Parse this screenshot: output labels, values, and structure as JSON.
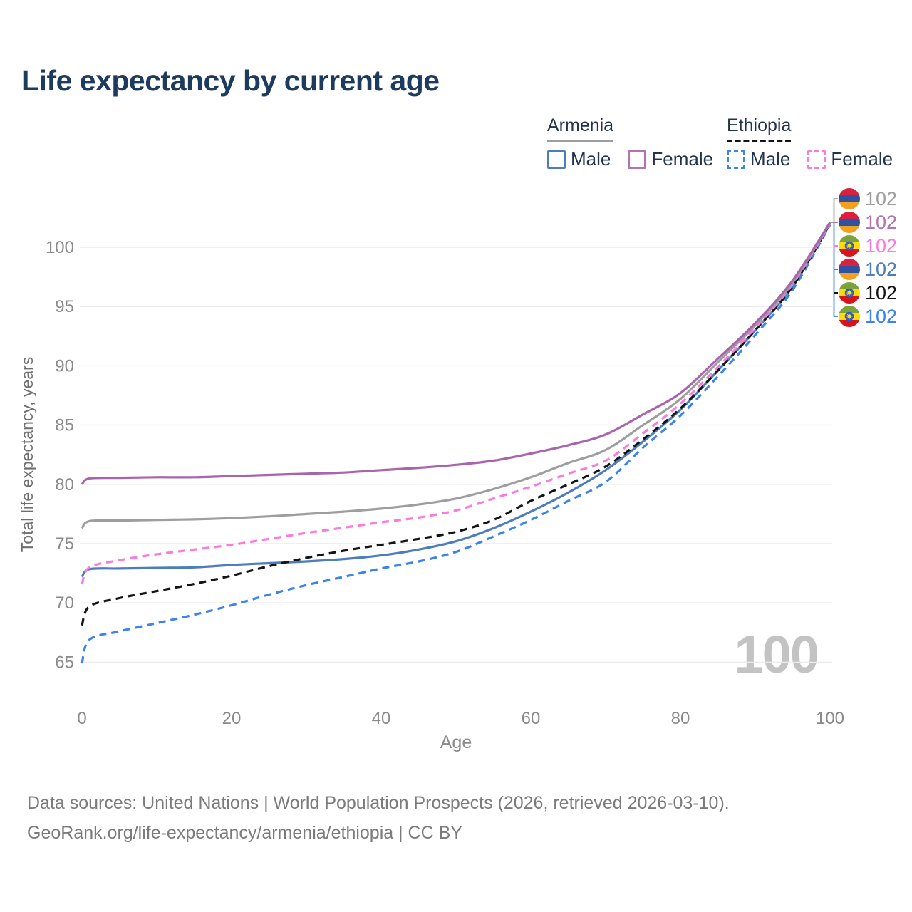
{
  "title": "Life expectancy by current age",
  "watermark": "100",
  "legend": {
    "groups": [
      {
        "label": "Armenia",
        "line_style": "solid",
        "line_color": "#9e9e9e",
        "items": [
          {
            "label": "Male",
            "color": "#4d7dbd",
            "dashed": false
          },
          {
            "label": "Female",
            "color": "#b474b4",
            "dashed": false
          }
        ]
      },
      {
        "label": "Ethiopia",
        "line_style": "dashed",
        "line_color": "#141414",
        "items": [
          {
            "label": "Male",
            "color": "#3c82f0",
            "dashed": true
          },
          {
            "label": "Female",
            "color": "#fb7ade",
            "dashed": true
          }
        ]
      }
    ]
  },
  "footer": {
    "line1": "Data sources: United Nations | World Population Prospects (2026, retrieved 2026-03-10).",
    "line2": "GeoRank.org/life-expectancy/armenia/ethiopia | CC BY"
  },
  "chart_data": {
    "type": "line",
    "title": "Life expectancy by current age",
    "xlabel": "Age",
    "ylabel": "Total life expectancy, years",
    "xlim": [
      0,
      100
    ],
    "ylim": [
      63,
      104
    ],
    "x_ticks": [
      0,
      20,
      40,
      60,
      80,
      100
    ],
    "y_ticks": [
      65,
      70,
      75,
      80,
      85,
      90,
      95,
      100
    ],
    "grid": "horizontal",
    "legend_position": "top-right",
    "ages": [
      0,
      1,
      5,
      10,
      15,
      20,
      25,
      30,
      35,
      40,
      45,
      50,
      55,
      60,
      65,
      70,
      75,
      80,
      85,
      90,
      95,
      100
    ],
    "series": [
      {
        "name": "Armenia Female",
        "country": "Armenia",
        "sex": "Female",
        "style": "solid",
        "color": "#aa64ad",
        "end_label": "102",
        "values": [
          80.0,
          80.5,
          80.55,
          80.6,
          80.6,
          80.7,
          80.8,
          80.9,
          81.0,
          81.2,
          81.4,
          81.65,
          82.0,
          82.6,
          83.3,
          84.2,
          85.9,
          87.7,
          90.6,
          93.6,
          97.2,
          102.1
        ]
      },
      {
        "name": "Armenia All",
        "country": "Armenia",
        "sex": "All",
        "style": "solid",
        "color": "#9e9e9e",
        "end_label": "102",
        "values": [
          76.3,
          76.9,
          76.95,
          77.0,
          77.05,
          77.15,
          77.3,
          77.5,
          77.7,
          77.95,
          78.3,
          78.8,
          79.6,
          80.6,
          81.8,
          82.9,
          85.0,
          87.2,
          90.3,
          93.4,
          97.0,
          102.05
        ]
      },
      {
        "name": "Ethiopia Female",
        "country": "Ethiopia",
        "sex": "Female",
        "style": "dashed",
        "color": "#fb7ade",
        "end_label": "102",
        "values": [
          71.6,
          73.0,
          73.6,
          74.1,
          74.5,
          74.9,
          75.4,
          75.9,
          76.35,
          76.8,
          77.2,
          77.8,
          78.8,
          79.8,
          80.9,
          82.0,
          84.3,
          86.8,
          89.9,
          93.2,
          96.9,
          102.0
        ]
      },
      {
        "name": "Armenia Male",
        "country": "Armenia",
        "sex": "Male",
        "style": "solid",
        "color": "#4d7dbd",
        "end_label": "102",
        "values": [
          72.2,
          72.85,
          72.9,
          72.95,
          73.0,
          73.2,
          73.35,
          73.5,
          73.7,
          74.0,
          74.5,
          75.2,
          76.3,
          77.7,
          79.3,
          81.2,
          83.6,
          86.3,
          89.6,
          93.0,
          96.7,
          102.0
        ]
      },
      {
        "name": "Ethiopia All",
        "country": "Ethiopia",
        "sex": "All",
        "style": "dashed",
        "color": "#141414",
        "end_label": "102",
        "values": [
          68.1,
          69.7,
          70.4,
          71.0,
          71.6,
          72.3,
          73.1,
          73.8,
          74.4,
          74.9,
          75.4,
          76.0,
          77.0,
          78.6,
          80.0,
          81.5,
          83.8,
          86.4,
          89.6,
          93.0,
          96.7,
          102.0
        ]
      },
      {
        "name": "Ethiopia Male",
        "country": "Ethiopia",
        "sex": "Male",
        "style": "dashed",
        "color": "#3c82f0",
        "end_label": "102",
        "values": [
          64.9,
          66.9,
          67.6,
          68.3,
          69.0,
          69.8,
          70.7,
          71.5,
          72.2,
          72.9,
          73.5,
          74.3,
          75.6,
          77.0,
          78.6,
          80.2,
          83.1,
          85.8,
          89.1,
          92.6,
          96.4,
          101.9
        ]
      }
    ],
    "end_labels": [
      {
        "text": "102",
        "color": "#9e9e9e",
        "flag": "armenia"
      },
      {
        "text": "102",
        "color": "#b474b4",
        "flag": "armenia"
      },
      {
        "text": "102",
        "color": "#fb7ade",
        "flag": "ethiopia"
      },
      {
        "text": "102",
        "color": "#4d7dbd",
        "flag": "armenia"
      },
      {
        "text": "102",
        "color": "#141414",
        "flag": "ethiopia"
      },
      {
        "text": "102",
        "color": "#3c82f0",
        "flag": "ethiopia"
      }
    ],
    "flags": {
      "armenia": {
        "bands": [
          "#d8213f",
          "#2e51a2",
          "#f2a01e"
        ]
      },
      "ethiopia": {
        "bands": [
          "#7da23c",
          "#fcdd09",
          "#da121a"
        ],
        "disc": "#2a5ac8",
        "star": "#fcdd09"
      }
    }
  }
}
